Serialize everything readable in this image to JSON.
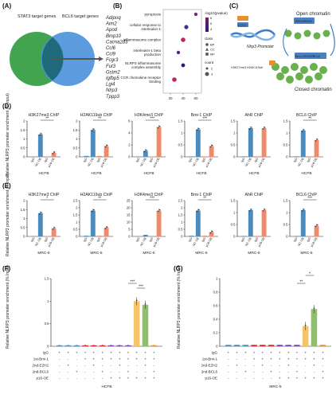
{
  "panel_A": {
    "label": "(A)",
    "legend_left": "STAT3 target genes",
    "legend_right": "BCL6 target genes",
    "genes": [
      {
        "name": "Adipoq",
        "color": "#222222"
      },
      {
        "name": "Aim2",
        "color": "#d9262c"
      },
      {
        "name": "Apod",
        "color": "#222222"
      },
      {
        "name": "Bmp10",
        "color": "#222222"
      },
      {
        "name": "Cacna2d3",
        "color": "#222222"
      },
      {
        "name": "Ccl6",
        "color": "#222222"
      },
      {
        "name": "Ccl9",
        "color": "#222222"
      },
      {
        "name": "Fcgr3",
        "color": "#222222"
      },
      {
        "name": "Fut3",
        "color": "#222222"
      },
      {
        "name": "Gstm2",
        "color": "#222222"
      },
      {
        "name": "Igfbp5",
        "color": "#222222"
      },
      {
        "name": "Lgi4",
        "color": "#222222"
      },
      {
        "name": "Nlrp3",
        "color": "#d9262c"
      },
      {
        "name": "Tppp3",
        "color": "#222222"
      }
    ]
  },
  "panel_B": {
    "label": "(B)",
    "terms": [
      "pyroptosis",
      "cellular response to interleukin-1",
      "inflammasome complex",
      "interleukin-1 beta production",
      "NLRP3 inflammasome complex assembly",
      "CCR chemokine receptor binding"
    ],
    "xticks": [
      "20",
      "40",
      "60"
    ],
    "legend_pval": "-log10(pvalue)",
    "pval_ticks": [
      "4",
      "5",
      "6"
    ],
    "legend_class": "class",
    "class_items": [
      "BP",
      "CC",
      "MF"
    ],
    "legend_count": "count",
    "count_items": [
      "2",
      "3"
    ]
  },
  "panel_C": {
    "label": "(C)",
    "promoter": "Nlrp3 Promoter",
    "stat3": "STAT3",
    "open": "Open chromatin",
    "closed": "Closed chromatin",
    "box1": "BRD4/BRD2",
    "box2": "Bmi-1/EZH2/BCL6",
    "marks": "H3K27me3 H2AK119ub"
  },
  "ylabel_nlrp3": "Relative NLRP3 promoter enrichment (% Input)",
  "panel_D": {
    "label": "(D)",
    "cell": "HCFB"
  },
  "panel_E": {
    "label": "(E)",
    "cell": "MRC-5"
  },
  "panel_F": {
    "label": "(F)",
    "cell": "HCFB"
  },
  "panel_G": {
    "label": "(G)",
    "cell": "MRC-5"
  },
  "chip_groups": [
    "IgG",
    "NC-OE",
    "IgG",
    "p16-OE"
  ],
  "grid_rows": [
    "IgG",
    "1st-Bmi-1",
    "2nd-EZH2",
    "2nd-BCL6",
    "p16-OE"
  ],
  "chart_data": [
    {
      "panel": "D1",
      "type": "bar",
      "title": "H3K27me3 ChIP",
      "categories": [
        "IgG",
        "NC-OE",
        "IgG",
        "p16-OE"
      ],
      "values": [
        0.02,
        1.25,
        0.02,
        0.22
      ],
      "ylim": [
        0,
        2.0
      ],
      "yticks": [
        0,
        0.5,
        1.0,
        1.5,
        2.0
      ],
      "sig": "**"
    },
    {
      "panel": "D2",
      "type": "bar",
      "title": "H2AK119ub ChIP",
      "categories": [
        "IgG",
        "NC-OE",
        "IgG",
        "p16-OE"
      ],
      "values": [
        0.05,
        1.5,
        0.05,
        0.6
      ],
      "ylim": [
        0,
        2.0
      ],
      "yticks": [
        0,
        0.5,
        1.0,
        1.5,
        2.0
      ],
      "sig": "**"
    },
    {
      "panel": "D3",
      "type": "bar",
      "title": "H3K4me3 ChIP",
      "categories": [
        "IgG",
        "NC-OE",
        "IgG",
        "p16-OE"
      ],
      "values": [
        0.05,
        1.0,
        0.05,
        5.0
      ],
      "ylim": [
        0,
        6
      ],
      "yticks": [
        0,
        2,
        4,
        6
      ],
      "sig": "***"
    },
    {
      "panel": "D4",
      "type": "bar",
      "title": "Bmi-1 ChIP",
      "categories": [
        "IgG",
        "NC-OE",
        "IgG",
        "p16-OE"
      ],
      "values": [
        0.02,
        1.15,
        0.02,
        0.45
      ],
      "ylim": [
        0,
        1.5
      ],
      "yticks": [
        0,
        0.5,
        1.0,
        1.5
      ],
      "sig": "***"
    },
    {
      "panel": "D5",
      "type": "bar",
      "title": "AhR ChIP",
      "categories": [
        "IgG",
        "NC-OE",
        "IgG",
        "p16-OE"
      ],
      "values": [
        0.02,
        1.2,
        0.02,
        1.2
      ],
      "ylim": [
        0,
        1.5
      ],
      "yticks": [
        0,
        0.5,
        1.0,
        1.5
      ],
      "sig": ""
    },
    {
      "panel": "D6",
      "type": "bar",
      "title": "BCL6 ChIP",
      "categories": [
        "IgG",
        "NC-OE",
        "IgG",
        "p16-OE"
      ],
      "values": [
        0.02,
        1.1,
        0.02,
        0.7
      ],
      "ylim": [
        0,
        1.5
      ],
      "yticks": [
        0,
        0.5,
        1.0,
        1.5
      ],
      "sig": "**"
    },
    {
      "panel": "E1",
      "type": "bar",
      "title": "H3K27me3 ChIP",
      "categories": [
        "IgG",
        "NC-OE",
        "IgG",
        "p16-OE"
      ],
      "values": [
        0.02,
        1.3,
        0.02,
        0.45
      ],
      "ylim": [
        0,
        2.0
      ],
      "yticks": [
        0,
        0.5,
        1.0,
        1.5,
        2.0
      ],
      "sig": "*"
    },
    {
      "panel": "E2",
      "type": "bar",
      "title": "H2AK119ub ChIP",
      "categories": [
        "IgG",
        "NC-OE",
        "IgG",
        "p16-OE"
      ],
      "values": [
        0.05,
        1.8,
        0.05,
        0.6
      ],
      "ylim": [
        0,
        2.5
      ],
      "yticks": [
        0,
        0.5,
        1.0,
        1.5,
        2.0,
        2.5
      ],
      "sig": "**"
    },
    {
      "panel": "E3",
      "type": "bar",
      "title": "H3K4me3 ChIP",
      "categories": [
        "IgG",
        "NC-OE",
        "IgG",
        "p16-OE"
      ],
      "values": [
        0.05,
        1.1,
        0.05,
        18
      ],
      "ylim": [
        0,
        25
      ],
      "yticks": [
        0,
        5,
        10,
        15,
        20,
        25
      ],
      "sig": "***"
    },
    {
      "panel": "E4",
      "type": "bar",
      "title": "Bmi-1 ChIP",
      "categories": [
        "IgG",
        "NC-OE",
        "IgG",
        "p16-OE"
      ],
      "values": [
        0.05,
        1.8,
        0.05,
        0.3
      ],
      "ylim": [
        0,
        2.5
      ],
      "yticks": [
        0,
        0.5,
        1.0,
        1.5,
        2.0,
        2.5
      ],
      "sig": "**"
    },
    {
      "panel": "E5",
      "type": "bar",
      "title": "AhR ChIP",
      "categories": [
        "IgG",
        "NC-OE",
        "IgG",
        "p16-OE"
      ],
      "values": [
        0.02,
        1.1,
        0.02,
        1.1
      ],
      "ylim": [
        0,
        1.5
      ],
      "yticks": [
        0,
        0.5,
        1.0,
        1.5
      ],
      "sig": ""
    },
    {
      "panel": "E6",
      "type": "bar",
      "title": "BCL6 ChIP",
      "categories": [
        "IgG",
        "NC-OE",
        "IgG",
        "p16-OE"
      ],
      "values": [
        0.02,
        1.1,
        0.02,
        0.45
      ],
      "ylim": [
        0,
        1.5
      ],
      "yticks": [
        0,
        0.5,
        1.0,
        1.5
      ],
      "sig": "***"
    },
    {
      "panel": "F",
      "type": "bar",
      "title": "",
      "values": [
        0.02,
        0.02,
        0.02,
        0.02,
        0.02,
        0.02,
        0.02,
        0.02,
        0.02,
        1.0,
        0.92,
        0.02
      ],
      "colors": [
        "#4b8bbe",
        "#4b8bbe",
        "#4b8bbe",
        "#d9262c",
        "#d9262c",
        "#d9262c",
        "#7a3fb0",
        "#7a3fb0",
        "#7a3fb0",
        "#f5c36b",
        "#8fbf6a",
        "#e7902b"
      ],
      "ylim": [
        0,
        1.5
      ],
      "yticks": [
        0,
        0.5,
        1.0,
        1.5
      ],
      "sig": [
        "***",
        "***"
      ]
    },
    {
      "panel": "G",
      "type": "bar",
      "title": "",
      "values": [
        0.02,
        0.02,
        0.02,
        0.02,
        0.02,
        0.02,
        0.02,
        0.02,
        0.02,
        0.3,
        0.55,
        0.02
      ],
      "colors": [
        "#4b8bbe",
        "#4b8bbe",
        "#4b8bbe",
        "#d9262c",
        "#d9262c",
        "#d9262c",
        "#7a3fb0",
        "#7a3fb0",
        "#7a3fb0",
        "#f5c36b",
        "#8fbf6a",
        "#e7902b"
      ],
      "ylim": [
        0,
        1.0
      ],
      "yticks": [
        0,
        0.2,
        0.4,
        0.6,
        0.8,
        1.0
      ],
      "sig": [
        "**",
        "*"
      ]
    }
  ],
  "grid_F": [
    [
      "+",
      "+",
      "+",
      "+",
      "+",
      "+",
      "+",
      "+",
      "+",
      "+",
      "+",
      "+"
    ],
    [
      "-",
      "-",
      "-",
      "+",
      "+",
      "+",
      "+",
      "+",
      "+",
      "+",
      "+",
      "+"
    ],
    [
      "-",
      "+",
      "-",
      "-",
      "+",
      "-",
      "-",
      "+",
      "-",
      "-",
      "+",
      "-"
    ],
    [
      "-",
      "-",
      "+",
      "-",
      "-",
      "+",
      "-",
      "-",
      "+",
      "-",
      "-",
      "+"
    ],
    [
      "-",
      "-",
      "-",
      "-",
      "-",
      "-",
      "+",
      "+",
      "+",
      "+",
      "+",
      "+"
    ]
  ]
}
